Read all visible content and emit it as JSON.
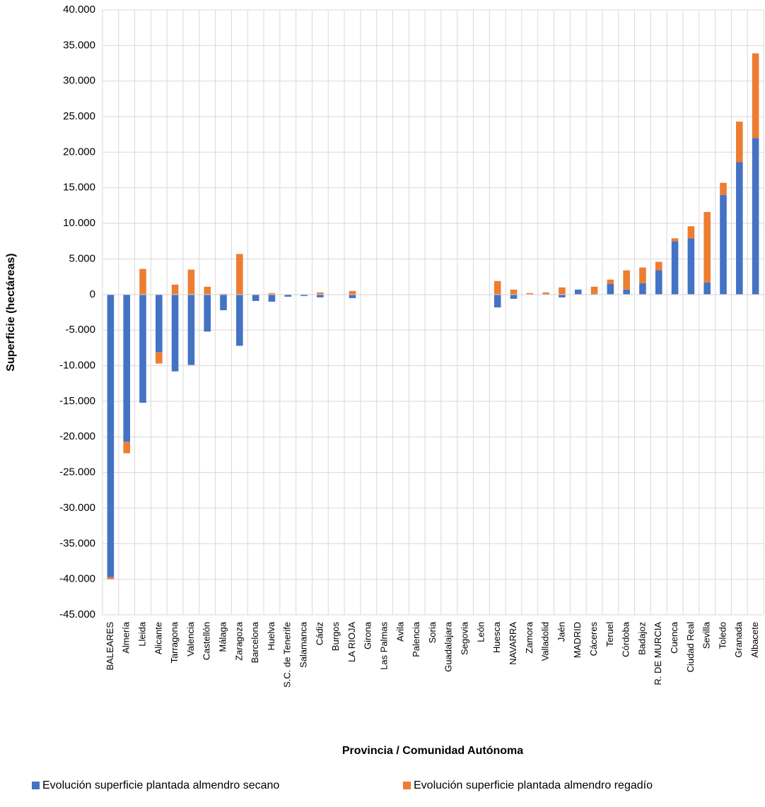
{
  "chart_data": {
    "type": "stacked-bar",
    "x_label": "Provincia / Comunidad Autónoma",
    "y_label": "Superficie (hectáreas)",
    "categories": [
      "BALEARES",
      "Almería",
      "Lleida",
      "Alicante",
      "Tarragona",
      "Valencia",
      "Castellón",
      "Málaga",
      "Zaragoza",
      "Barcelona",
      "Huelva",
      "S.C. de Tenerife",
      "Salamanca",
      "Cádiz",
      "Burgos",
      "LA RIOJA",
      "Girona",
      "Las Palmas",
      "Avila",
      "Palencia",
      "Soria",
      "Guadalajara",
      "Segovia",
      "León",
      "Huesca",
      "NAVARRA",
      "Zamora",
      "Valladolid",
      "Jaén",
      "MADRID",
      "Cáceres",
      "Teruel",
      "Córdoba",
      "Badajoz",
      "R. DE MURCIA",
      "Cuenca",
      "Ciudad Real",
      "Sevilla",
      "Toledo",
      "Granada",
      "Albacete"
    ],
    "series": [
      {
        "name": "Evolución superficie plantada almendro secano",
        "color": "#4472c4",
        "values": [
          -39700,
          -20700,
          -15200,
          -8100,
          -10800,
          -9900,
          -5200,
          -2200,
          -7200,
          -900,
          -1000,
          -300,
          -200,
          -400,
          0,
          -500,
          0,
          0,
          0,
          0,
          0,
          0,
          0,
          0,
          -1800,
          -600,
          0,
          100,
          -400,
          700,
          100,
          1500,
          700,
          1600,
          3400,
          7500,
          7900,
          1700,
          14000,
          18600,
          22000
        ]
      },
      {
        "name": "Evolución superficie plantada almendro regadío",
        "color": "#ed7d31",
        "values": [
          -300,
          -1600,
          3600,
          -1600,
          1400,
          3500,
          1100,
          100,
          5700,
          0,
          200,
          0,
          0,
          300,
          0,
          500,
          0,
          0,
          0,
          0,
          0,
          0,
          0,
          0,
          1900,
          700,
          200,
          200,
          1000,
          0,
          1000,
          600,
          2700,
          2200,
          1200,
          400,
          1700,
          9900,
          1700,
          5700,
          11900
        ]
      }
    ],
    "ylim": [
      -45000,
      40000
    ],
    "yticks": [
      {
        "value": -45000,
        "label": "-45.000"
      },
      {
        "value": -40000,
        "label": "-40.000"
      },
      {
        "value": -35000,
        "label": "-35.000"
      },
      {
        "value": -30000,
        "label": "-30.000"
      },
      {
        "value": -25000,
        "label": "-25.000"
      },
      {
        "value": -20000,
        "label": "-20.000"
      },
      {
        "value": -15000,
        "label": "-15.000"
      },
      {
        "value": -10000,
        "label": "-10.000"
      },
      {
        "value": -5000,
        "label": "-5.000"
      },
      0,
      {
        "value": 5000,
        "label": "5.000"
      },
      {
        "value": 10000,
        "label": "10.000"
      },
      {
        "value": 15000,
        "label": "15.000"
      },
      {
        "value": 20000,
        "label": "20.000"
      },
      {
        "value": 25000,
        "label": "25.000"
      },
      {
        "value": 30000,
        "label": "30.000"
      },
      {
        "value": 35000,
        "label": "35.000"
      },
      {
        "value": 40000,
        "label": "40.000"
      }
    ],
    "grid": true,
    "legend": "bottom"
  }
}
